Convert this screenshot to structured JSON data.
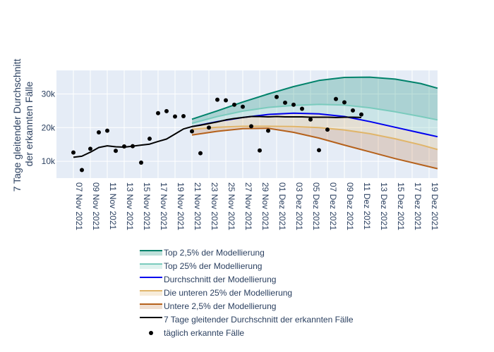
{
  "chart_data": {
    "type": "line",
    "ylabel_lines": [
      "7 Tage gleitender Durchschnitt",
      "der erkannten Fälle"
    ],
    "x_range": [
      "2021-11-05",
      "2021-12-20"
    ],
    "x_tick_labels": [
      "07 Nov 2021",
      "09 Nov 2021",
      "11 Nov 2021",
      "13 Nov 2021",
      "15 Nov 2021",
      "17 Nov 2021",
      "19 Nov 2021",
      "21 Nov 2021",
      "23 Nov 2021",
      "25 Nov 2021",
      "27 Nov 2021",
      "29 Nov 2021",
      "01 Dez 2021",
      "03 Dez 2021",
      "05 Dez 2021",
      "07 Dez 2021",
      "09 Dez 2021",
      "11 Dez 2021",
      "13 Dez 2021",
      "15 Dez 2021",
      "17 Dez 2021",
      "19 Dez 2021"
    ],
    "x_tick_dates": [
      "2021-11-07",
      "2021-11-09",
      "2021-11-11",
      "2021-11-13",
      "2021-11-15",
      "2021-11-17",
      "2021-11-19",
      "2021-11-21",
      "2021-11-23",
      "2021-11-25",
      "2021-11-27",
      "2021-11-29",
      "2021-12-01",
      "2021-12-03",
      "2021-12-05",
      "2021-12-07",
      "2021-12-09",
      "2021-12-11",
      "2021-12-13",
      "2021-12-15",
      "2021-12-17",
      "2021-12-19"
    ],
    "y_range": [
      5000,
      37000
    ],
    "y_ticks": [
      10000,
      20000,
      30000
    ],
    "y_tick_labels": [
      "10k",
      "20k",
      "30k"
    ],
    "grid": true,
    "legend_position": "bottom",
    "background_color": "#e5ecf6",
    "series": [
      {
        "name": "Top 2,5% der Modellierung",
        "color": "#00826a",
        "fill_color": "rgba(0,130,106,0.25)",
        "x": [
          "2021-11-21",
          "2021-11-24",
          "2021-11-27",
          "2021-11-30",
          "2021-12-03",
          "2021-12-06",
          "2021-12-09",
          "2021-12-12",
          "2021-12-15",
          "2021-12-18",
          "2021-12-20"
        ],
        "values": [
          22500,
          25000,
          27600,
          30000,
          32200,
          34000,
          34900,
          35000,
          34400,
          33100,
          31700
        ]
      },
      {
        "name": "Top 25% der Modellierung",
        "color": "#7acbbd",
        "fill_color": "rgba(122,203,189,0.25)",
        "x": [
          "2021-11-21",
          "2021-11-24",
          "2021-11-27",
          "2021-11-30",
          "2021-12-03",
          "2021-12-06",
          "2021-12-09",
          "2021-12-12",
          "2021-12-15",
          "2021-12-18",
          "2021-12-20"
        ],
        "values": [
          21300,
          23300,
          24900,
          26000,
          26600,
          26900,
          26700,
          25900,
          24700,
          23300,
          22300
        ]
      },
      {
        "name": "Durchschnitt der Modellierung",
        "color": "#0000ee",
        "x": [
          "2021-11-21",
          "2021-11-24",
          "2021-11-27",
          "2021-11-30",
          "2021-12-03",
          "2021-12-06",
          "2021-12-09",
          "2021-12-12",
          "2021-12-15",
          "2021-12-18",
          "2021-12-20"
        ],
        "values": [
          20300,
          21800,
          23000,
          23900,
          24300,
          24100,
          23300,
          21800,
          20100,
          18400,
          17300
        ]
      },
      {
        "name": "Die unteren 25% der Modellierung",
        "color": "#e0b56a",
        "fill_color": "rgba(224,181,106,0.25)",
        "x": [
          "2021-11-21",
          "2021-11-24",
          "2021-11-27",
          "2021-11-30",
          "2021-12-03",
          "2021-12-06",
          "2021-12-09",
          "2021-12-12",
          "2021-12-15",
          "2021-12-18",
          "2021-12-20"
        ],
        "values": [
          19500,
          20100,
          20400,
          20400,
          20300,
          20000,
          19300,
          18200,
          16700,
          14900,
          13500
        ]
      },
      {
        "name": "Untere 2,5% der Modellierung",
        "color": "#b5611b",
        "fill_color": "rgba(181,97,27,0.2)",
        "x": [
          "2021-11-21",
          "2021-11-24",
          "2021-11-27",
          "2021-11-30",
          "2021-12-03",
          "2021-12-06",
          "2021-12-09",
          "2021-12-12",
          "2021-12-15",
          "2021-12-18",
          "2021-12-20"
        ],
        "values": [
          17800,
          18900,
          19700,
          19800,
          18600,
          16900,
          14800,
          12800,
          10800,
          9000,
          7800
        ]
      },
      {
        "name": "7 Tage gleitender Durchschnitt der erkannten Fälle",
        "color": "#000000",
        "x": [
          "2021-11-07",
          "2021-11-08",
          "2021-11-09",
          "2021-11-10",
          "2021-11-11",
          "2021-11-12",
          "2021-11-13",
          "2021-11-14",
          "2021-11-15",
          "2021-11-16",
          "2021-11-17",
          "2021-11-18",
          "2021-11-19",
          "2021-11-20",
          "2021-11-21",
          "2021-11-22",
          "2021-11-23",
          "2021-11-24",
          "2021-11-25",
          "2021-11-26",
          "2021-11-27",
          "2021-11-28",
          "2021-11-29",
          "2021-11-30",
          "2021-12-01",
          "2021-12-02",
          "2021-12-03",
          "2021-12-04",
          "2021-12-05",
          "2021-12-06",
          "2021-12-07",
          "2021-12-08",
          "2021-12-09",
          "2021-12-10",
          "2021-12-11"
        ],
        "values": [
          11200,
          11500,
          12700,
          14100,
          14600,
          14300,
          14200,
          14500,
          14800,
          15100,
          15900,
          16600,
          18100,
          19600,
          20300,
          20700,
          21200,
          21700,
          22300,
          22700,
          23000,
          23300,
          23300,
          23200,
          23300,
          23200,
          23200,
          23200,
          23100,
          23100,
          23100,
          23000,
          23100,
          23100,
          23000
        ]
      },
      {
        "name": "täglich erkannte Fälle",
        "color": "#000000",
        "mode": "markers",
        "x": [
          "2021-11-07",
          "2021-11-08",
          "2021-11-09",
          "2021-11-10",
          "2021-11-11",
          "2021-11-12",
          "2021-11-13",
          "2021-11-14",
          "2021-11-15",
          "2021-11-16",
          "2021-11-17",
          "2021-11-18",
          "2021-11-19",
          "2021-11-20",
          "2021-11-21",
          "2021-11-22",
          "2021-11-23",
          "2021-11-24",
          "2021-11-25",
          "2021-11-26",
          "2021-11-27",
          "2021-11-28",
          "2021-11-29",
          "2021-11-30",
          "2021-12-01",
          "2021-12-02",
          "2021-12-03",
          "2021-12-04",
          "2021-12-05",
          "2021-12-06",
          "2021-12-07",
          "2021-12-08",
          "2021-12-09",
          "2021-12-10",
          "2021-12-11"
        ],
        "values": [
          12600,
          7400,
          13700,
          18600,
          19100,
          13100,
          14400,
          14500,
          9600,
          16700,
          24300,
          24900,
          23300,
          23400,
          18900,
          12400,
          20000,
          28300,
          28100,
          26800,
          26200,
          20400,
          13200,
          19100,
          29100,
          27400,
          26800,
          25600,
          22400,
          13300,
          19400,
          28500,
          27500,
          25100,
          23900
        ]
      }
    ]
  }
}
